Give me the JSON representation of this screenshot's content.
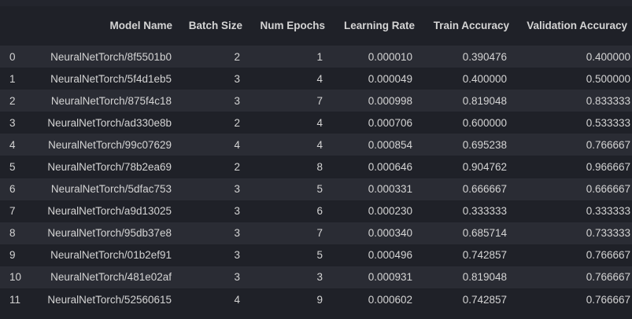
{
  "table": {
    "columns": [
      {
        "key": "index",
        "label": ""
      },
      {
        "key": "model_name",
        "label": "Model Name"
      },
      {
        "key": "batch_size",
        "label": "Batch Size"
      },
      {
        "key": "num_epochs",
        "label": "Num Epochs"
      },
      {
        "key": "learning_rate",
        "label": "Learning Rate"
      },
      {
        "key": "train_accuracy",
        "label": "Train Accuracy"
      },
      {
        "key": "validation_accuracy",
        "label": "Validation Accuracy"
      }
    ],
    "rows": [
      {
        "index": "0",
        "model_name": "NeuralNetTorch/8f5501b0",
        "batch_size": "2",
        "num_epochs": "1",
        "learning_rate": "0.000010",
        "train_accuracy": "0.390476",
        "validation_accuracy": "0.400000"
      },
      {
        "index": "1",
        "model_name": "NeuralNetTorch/5f4d1eb5",
        "batch_size": "3",
        "num_epochs": "4",
        "learning_rate": "0.000049",
        "train_accuracy": "0.400000",
        "validation_accuracy": "0.500000"
      },
      {
        "index": "2",
        "model_name": "NeuralNetTorch/875f4c18",
        "batch_size": "3",
        "num_epochs": "7",
        "learning_rate": "0.000998",
        "train_accuracy": "0.819048",
        "validation_accuracy": "0.833333"
      },
      {
        "index": "3",
        "model_name": "NeuralNetTorch/ad330e8b",
        "batch_size": "2",
        "num_epochs": "4",
        "learning_rate": "0.000706",
        "train_accuracy": "0.600000",
        "validation_accuracy": "0.533333"
      },
      {
        "index": "4",
        "model_name": "NeuralNetTorch/99c07629",
        "batch_size": "4",
        "num_epochs": "4",
        "learning_rate": "0.000854",
        "train_accuracy": "0.695238",
        "validation_accuracy": "0.766667"
      },
      {
        "index": "5",
        "model_name": "NeuralNetTorch/78b2ea69",
        "batch_size": "2",
        "num_epochs": "8",
        "learning_rate": "0.000646",
        "train_accuracy": "0.904762",
        "validation_accuracy": "0.966667"
      },
      {
        "index": "6",
        "model_name": "NeuralNetTorch/5dfac753",
        "batch_size": "3",
        "num_epochs": "5",
        "learning_rate": "0.000331",
        "train_accuracy": "0.666667",
        "validation_accuracy": "0.666667"
      },
      {
        "index": "7",
        "model_name": "NeuralNetTorch/a9d13025",
        "batch_size": "3",
        "num_epochs": "6",
        "learning_rate": "0.000230",
        "train_accuracy": "0.333333",
        "validation_accuracy": "0.333333"
      },
      {
        "index": "8",
        "model_name": "NeuralNetTorch/95db37e8",
        "batch_size": "3",
        "num_epochs": "7",
        "learning_rate": "0.000340",
        "train_accuracy": "0.685714",
        "validation_accuracy": "0.733333"
      },
      {
        "index": "9",
        "model_name": "NeuralNetTorch/01b2ef91",
        "batch_size": "3",
        "num_epochs": "5",
        "learning_rate": "0.000496",
        "train_accuracy": "0.742857",
        "validation_accuracy": "0.766667"
      },
      {
        "index": "10",
        "model_name": "NeuralNetTorch/481e02af",
        "batch_size": "3",
        "num_epochs": "3",
        "learning_rate": "0.000931",
        "train_accuracy": "0.819048",
        "validation_accuracy": "0.766667"
      },
      {
        "index": "11",
        "model_name": "NeuralNetTorch/52560615",
        "batch_size": "4",
        "num_epochs": "9",
        "learning_rate": "0.000602",
        "train_accuracy": "0.742857",
        "validation_accuracy": "0.766667"
      }
    ]
  }
}
